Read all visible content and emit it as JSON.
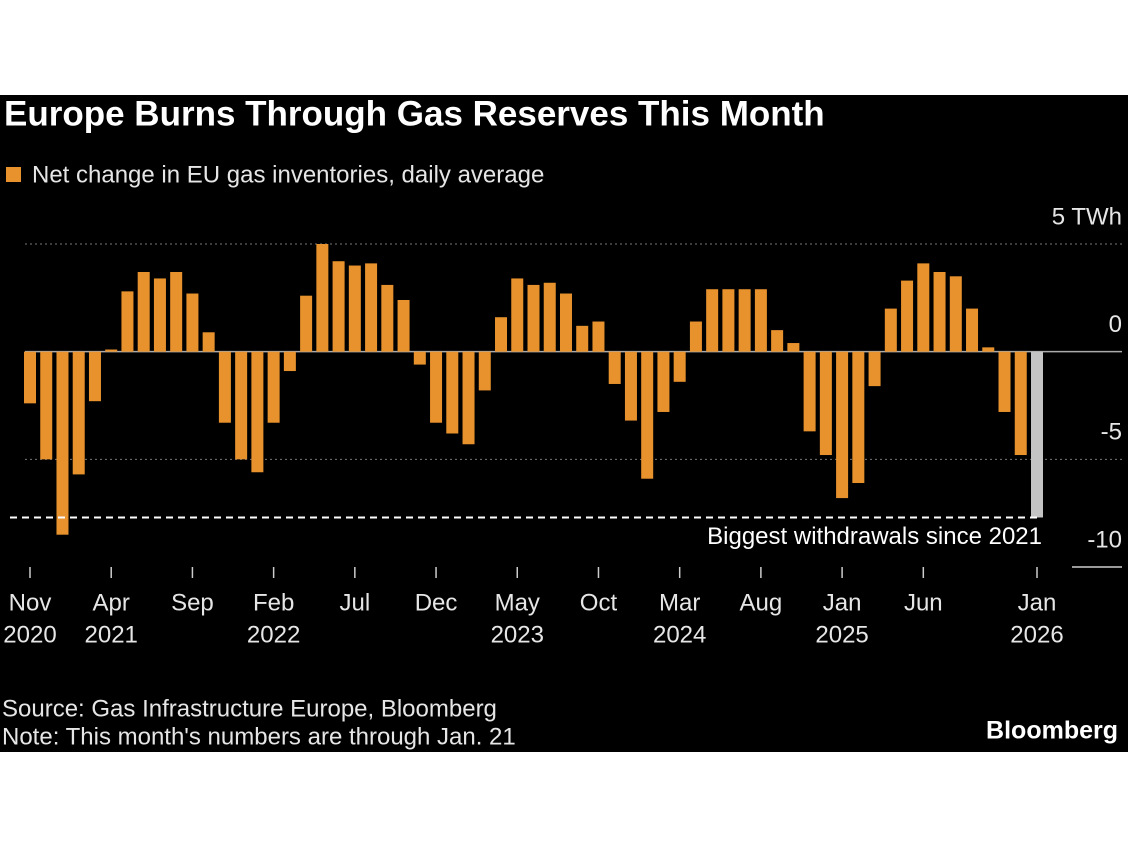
{
  "chart_data": {
    "type": "bar",
    "title": "Europe Burns Through Gas Reserves This Month",
    "source": "Source: Gas Infrastructure Europe, Bloomberg",
    "note": "Note: This month's numbers are through Jan. 21",
    "brand": "Bloomberg",
    "categories": [
      "Nov",
      null,
      null,
      null,
      null,
      "Apr",
      null,
      null,
      null,
      null,
      "Sep",
      null,
      null,
      null,
      null,
      "Feb",
      null,
      null,
      null,
      null,
      "Jul",
      null,
      null,
      null,
      null,
      "Dec",
      null,
      null,
      null,
      null,
      "May",
      null,
      null,
      null,
      null,
      "Oct",
      null,
      null,
      null,
      null,
      "Mar",
      null,
      null,
      null,
      null,
      "Aug",
      null,
      null,
      null,
      null,
      "Jan",
      null,
      null,
      null,
      null,
      "Jun",
      null,
      null,
      null,
      null,
      null,
      null,
      "Jan"
    ],
    "year_labels": [
      "2020",
      null,
      null,
      null,
      null,
      "2021",
      null,
      null,
      null,
      null,
      null,
      null,
      null,
      null,
      null,
      "2022",
      null,
      null,
      null,
      null,
      null,
      null,
      null,
      null,
      null,
      null,
      null,
      null,
      null,
      null,
      "2023",
      null,
      null,
      null,
      null,
      null,
      null,
      null,
      null,
      null,
      "2024",
      null,
      null,
      null,
      null,
      null,
      null,
      null,
      null,
      null,
      "2025",
      null,
      null,
      null,
      null,
      null,
      null,
      null,
      null,
      null,
      null,
      null,
      "2026"
    ],
    "series": [
      {
        "name": "Net change in EU gas inventories, daily average",
        "color": "#e8922d",
        "values": [
          -2.4,
          -5.0,
          -8.5,
          -5.7,
          -2.3,
          0.1,
          2.8,
          3.7,
          3.4,
          3.7,
          2.7,
          0.9,
          -3.3,
          -5.0,
          -5.6,
          -3.3,
          -0.9,
          2.6,
          5.0,
          4.2,
          4.0,
          4.1,
          3.1,
          2.4,
          -0.6,
          -3.3,
          -3.8,
          -4.3,
          -1.8,
          1.6,
          3.4,
          3.1,
          3.2,
          2.7,
          1.2,
          1.4,
          -1.5,
          -3.2,
          -5.9,
          -2.8,
          -1.4,
          1.4,
          2.9,
          2.9,
          2.9,
          2.9,
          1.0,
          0.4,
          -3.7,
          -4.8,
          -6.8,
          -6.1,
          -1.6,
          2.0,
          3.3,
          4.1,
          3.7,
          3.5,
          2.0,
          0.2,
          -2.8,
          -4.8,
          -7.7
        ]
      }
    ],
    "last_bar_color": "#c4c4c4",
    "reference_line": {
      "value": -7.7,
      "label": "Biggest withdrawals since 2021"
    },
    "ylim": [
      -10,
      5
    ],
    "yticks": [
      {
        "value": 5,
        "label": "5 TWh"
      },
      0,
      -5,
      -10
    ],
    "grid": true
  }
}
